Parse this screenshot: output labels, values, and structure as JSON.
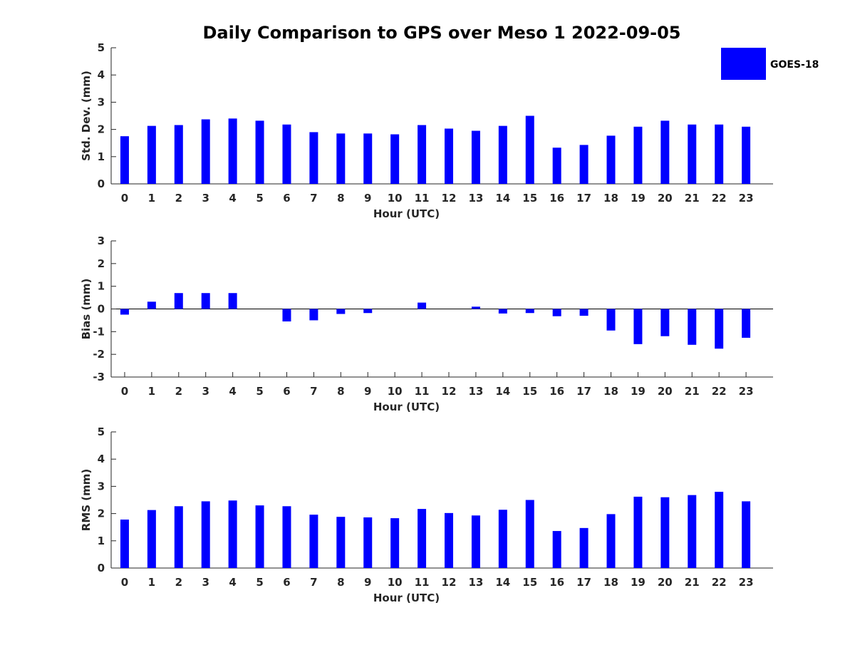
{
  "title": "Daily Comparison to GPS over Meso 1 2022-09-05",
  "legend": {
    "label": "GOES-18",
    "color": "#0000ff",
    "placement": "top-right (outside)"
  },
  "chart_data": [
    {
      "type": "bar",
      "ylabel": "Std. Dev. (mm)",
      "xlabel": "Hour (UTC)",
      "ylim": [
        0,
        5
      ],
      "yticks": [
        0,
        1,
        2,
        3,
        4,
        5
      ],
      "categories": [
        "0",
        "1",
        "2",
        "3",
        "4",
        "5",
        "6",
        "7",
        "8",
        "9",
        "10",
        "11",
        "12",
        "13",
        "14",
        "15",
        "16",
        "17",
        "18",
        "19",
        "20",
        "21",
        "22",
        "23"
      ],
      "series": [
        {
          "name": "GOES-18",
          "color": "#0000ff",
          "values": [
            1.75,
            2.13,
            2.16,
            2.37,
            2.4,
            2.32,
            2.18,
            1.9,
            1.85,
            1.85,
            1.82,
            2.16,
            2.03,
            1.95,
            2.13,
            2.5,
            1.33,
            1.43,
            1.77,
            2.1,
            2.32,
            2.18,
            2.18,
            2.1
          ]
        }
      ],
      "grid": false
    },
    {
      "type": "bar",
      "ylabel": "Bias (mm)",
      "xlabel": "Hour (UTC)",
      "ylim": [
        -3,
        3
      ],
      "yticks": [
        -3,
        -2,
        -1,
        0,
        1,
        2,
        3
      ],
      "zero_line": true,
      "categories": [
        "0",
        "1",
        "2",
        "3",
        "4",
        "5",
        "6",
        "7",
        "8",
        "9",
        "10",
        "11",
        "12",
        "13",
        "14",
        "15",
        "16",
        "17",
        "18",
        "19",
        "20",
        "21",
        "22",
        "23"
      ],
      "series": [
        {
          "name": "GOES-18",
          "color": "#0000ff",
          "values": [
            -0.25,
            0.32,
            0.7,
            0.7,
            0.7,
            0.0,
            -0.55,
            -0.5,
            -0.22,
            -0.18,
            0.0,
            0.28,
            0.0,
            0.1,
            -0.2,
            -0.18,
            -0.32,
            -0.3,
            -0.95,
            -1.55,
            -1.2,
            -1.58,
            -1.75,
            -1.27
          ]
        }
      ],
      "grid": false
    },
    {
      "type": "bar",
      "ylabel": "RMS (mm)",
      "xlabel": "Hour (UTC)",
      "ylim": [
        0,
        5
      ],
      "yticks": [
        0,
        1,
        2,
        3,
        4,
        5
      ],
      "categories": [
        "0",
        "1",
        "2",
        "3",
        "4",
        "5",
        "6",
        "7",
        "8",
        "9",
        "10",
        "11",
        "12",
        "13",
        "14",
        "15",
        "16",
        "17",
        "18",
        "19",
        "20",
        "21",
        "22",
        "23"
      ],
      "series": [
        {
          "name": "GOES-18",
          "color": "#0000ff",
          "values": [
            1.78,
            2.13,
            2.27,
            2.45,
            2.48,
            2.3,
            2.27,
            1.96,
            1.88,
            1.86,
            1.83,
            2.17,
            2.02,
            1.93,
            2.14,
            2.5,
            1.36,
            1.47,
            1.98,
            2.62,
            2.6,
            2.68,
            2.8,
            2.45
          ]
        }
      ],
      "grid": false
    }
  ]
}
